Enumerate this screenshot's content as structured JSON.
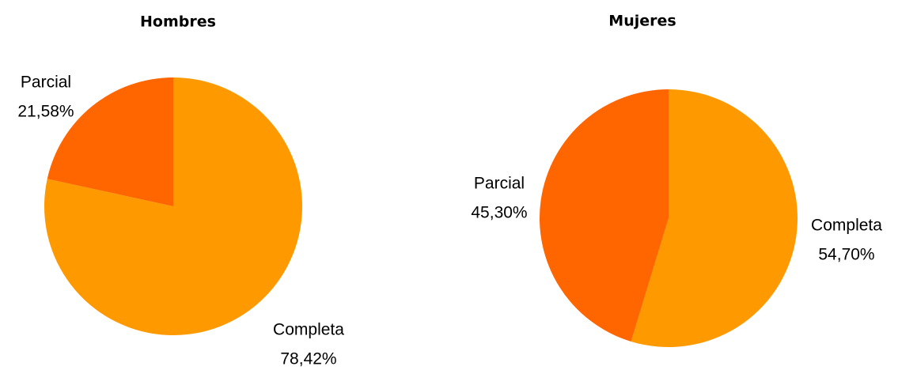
{
  "chart_data": [
    {
      "type": "pie",
      "title": "Hombres",
      "categories": [
        "Completa",
        "Parcial"
      ],
      "values": [
        78.42,
        21.58
      ],
      "value_labels": [
        "78,42%",
        "21,58%"
      ],
      "colors": [
        "#ff9900",
        "#ff6600"
      ]
    },
    {
      "type": "pie",
      "title": "Mujeres",
      "categories": [
        "Completa",
        "Parcial"
      ],
      "values": [
        54.7,
        45.3
      ],
      "value_labels": [
        "54,70%",
        "45,30%"
      ],
      "colors": [
        "#ff9900",
        "#ff6600"
      ]
    }
  ]
}
